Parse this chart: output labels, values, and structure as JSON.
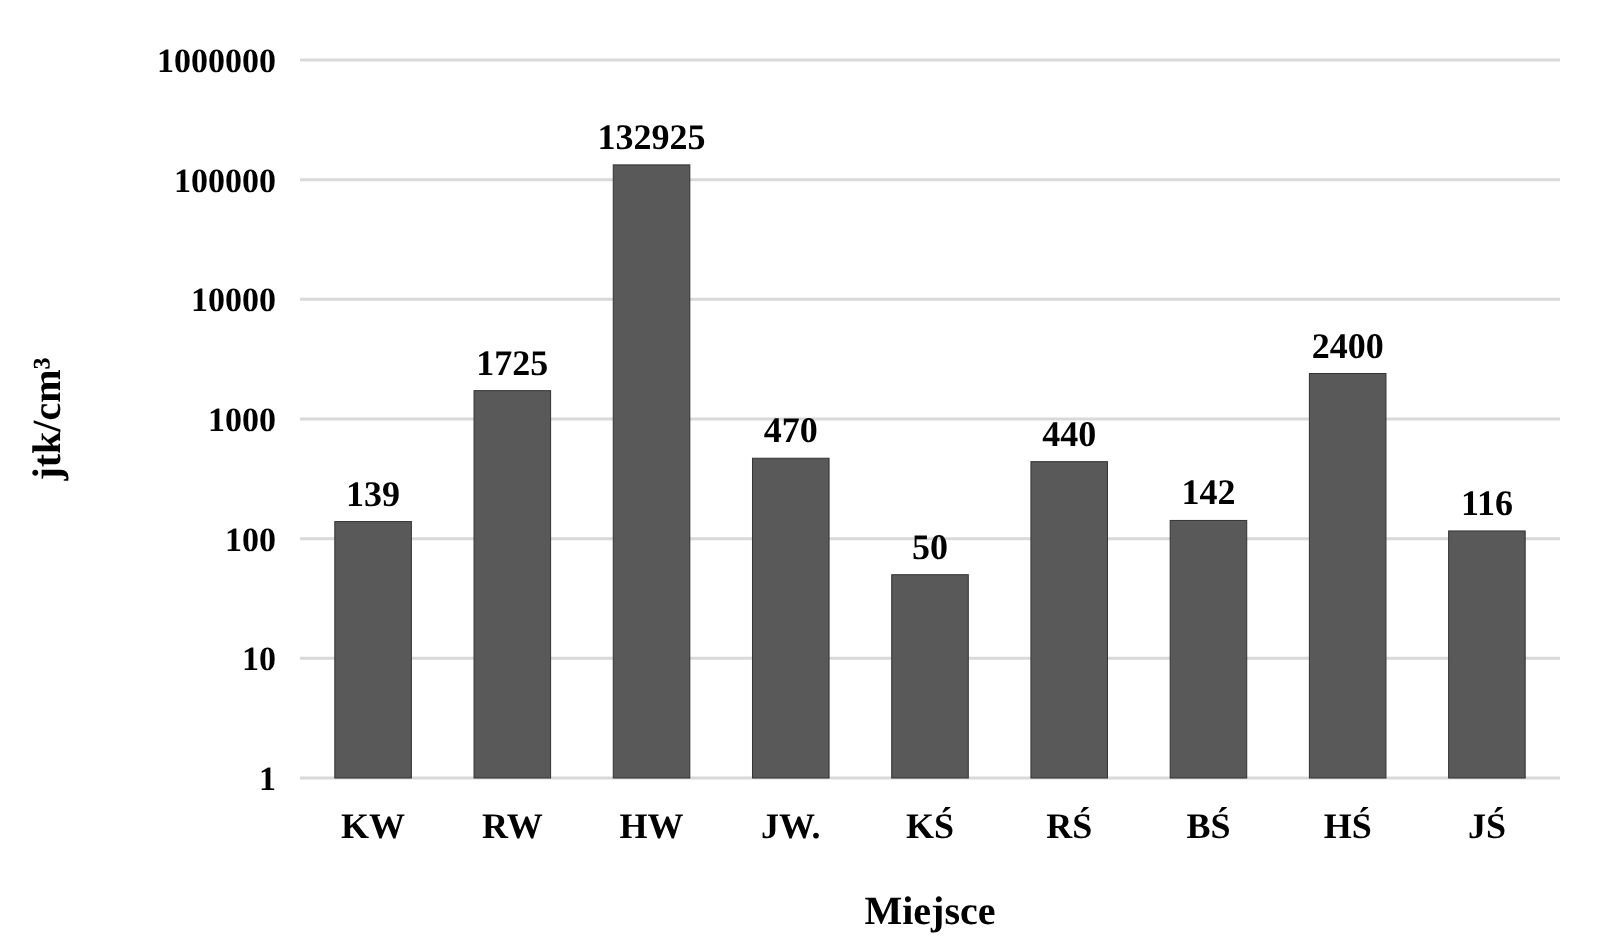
{
  "chart_data": {
    "type": "bar",
    "xlabel": "Miejsce",
    "ylabel": "jtk/cm³",
    "categories": [
      "KW",
      "RW",
      "HW",
      "JW.",
      "KŚ",
      "RŚ",
      "BŚ",
      "HŚ",
      "JŚ"
    ],
    "values": [
      139,
      1725,
      132925,
      470,
      50,
      440,
      142,
      2400,
      116
    ],
    "color": "#595959",
    "log": "y",
    "ylim": [
      1,
      1000000
    ],
    "yticks": [
      1,
      10,
      100,
      1000,
      10000,
      100000,
      1000000
    ],
    "grid": "y",
    "data_labels": true
  }
}
